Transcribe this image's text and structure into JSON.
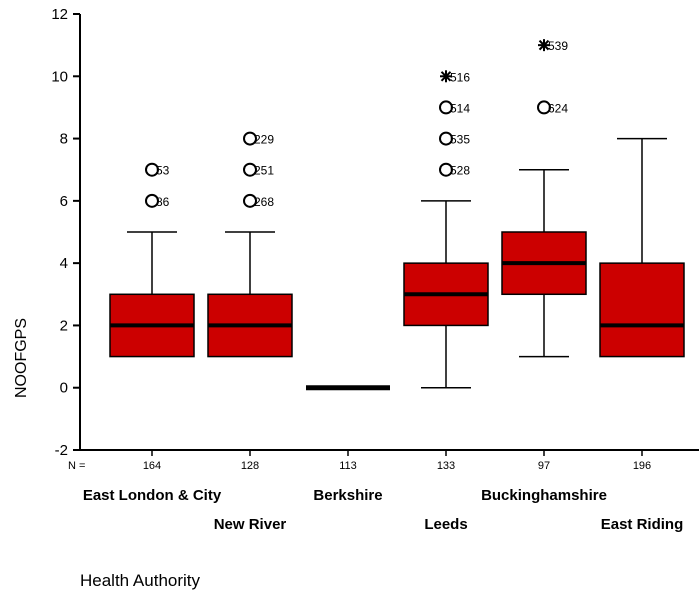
{
  "chart_data": {
    "type": "boxplot",
    "xlabel": "Health Authority",
    "ylabel": "NOOFGPS",
    "ylim": [
      -2,
      12
    ],
    "yticks": [
      -2,
      0,
      2,
      4,
      6,
      8,
      10,
      12
    ],
    "n_prefix": "N =",
    "box_color": "#cc0000",
    "categories": [
      {
        "name": "East London & City",
        "row": 1,
        "n": "164",
        "min": 1,
        "q1": 1,
        "median": 2,
        "q3": 3,
        "max": 5,
        "outliers": [
          {
            "y": 7,
            "marker": "circle",
            "label": "53"
          },
          {
            "y": 6,
            "marker": "circle",
            "label": "86"
          }
        ]
      },
      {
        "name": "New River",
        "row": 2,
        "n": "128",
        "min": 1,
        "q1": 1,
        "median": 2,
        "q3": 3,
        "max": 5,
        "outliers": [
          {
            "y": 8,
            "marker": "circle",
            "label": "229"
          },
          {
            "y": 7,
            "marker": "circle",
            "label": "251"
          },
          {
            "y": 6,
            "marker": "circle",
            "label": "268"
          }
        ]
      },
      {
        "name": "Berkshire",
        "row": 1,
        "n": "113",
        "min": 0,
        "q1": 0,
        "median": 0,
        "q3": 0,
        "max": 0,
        "outliers": []
      },
      {
        "name": "Leeds",
        "row": 2,
        "n": "133",
        "min": 0,
        "q1": 2,
        "median": 3,
        "q3": 4,
        "max": 6,
        "outliers": [
          {
            "y": 10,
            "marker": "star",
            "label": "516"
          },
          {
            "y": 9,
            "marker": "circle",
            "label": "514"
          },
          {
            "y": 8,
            "marker": "circle",
            "label": "535"
          },
          {
            "y": 7,
            "marker": "circle",
            "label": "528"
          }
        ]
      },
      {
        "name": "Buckinghamshire",
        "row": 1,
        "n": "97",
        "min": 1,
        "q1": 3,
        "median": 4,
        "q3": 5,
        "max": 7,
        "outliers": [
          {
            "y": 11,
            "marker": "star",
            "label": "539"
          },
          {
            "y": 9,
            "marker": "circle",
            "label": "624"
          }
        ]
      },
      {
        "name": "East Riding",
        "row": 2,
        "n": "196",
        "min": 1,
        "q1": 1,
        "median": 2,
        "q3": 4,
        "max": 8,
        "outliers": []
      }
    ]
  }
}
